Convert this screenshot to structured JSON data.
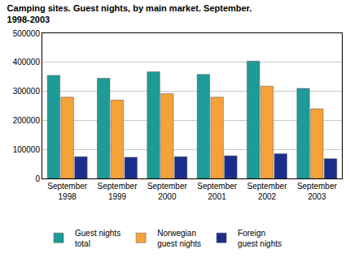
{
  "chart_data": {
    "type": "bar",
    "title": "Camping sites. Guest nights, by main market. September. 1998-2003",
    "categories": [
      "September 1998",
      "September 1999",
      "September 2000",
      "September 2001",
      "September 2002",
      "September 2003"
    ],
    "series": [
      {
        "name": "Guest nights total",
        "color": "#1f9a96",
        "values": [
          355000,
          345000,
          367000,
          358000,
          404000,
          310000
        ]
      },
      {
        "name": "Norwegian guest nights",
        "color": "#f5a23a",
        "values": [
          280000,
          270000,
          292000,
          280000,
          318000,
          240000
        ]
      },
      {
        "name": "Foreign guest nights",
        "color": "#1c2e8c",
        "values": [
          75000,
          73000,
          75000,
          78000,
          85000,
          68000
        ]
      }
    ],
    "ylim": [
      0,
      500000
    ],
    "yticks": [
      0,
      100000,
      200000,
      300000,
      400000,
      500000
    ],
    "grid": true,
    "legend": "bottom"
  }
}
